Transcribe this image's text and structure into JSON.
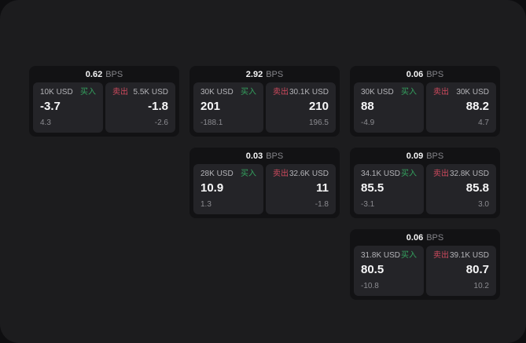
{
  "labels": {
    "bps_unit": "BPS",
    "buy": "买入",
    "sell": "卖出"
  },
  "colors": {
    "panel_bg": "#1c1c1e",
    "card_bg": "#121214",
    "tile_bg": "#242428",
    "buy_green": "#34a35f",
    "sell_red": "#cf4a5e"
  },
  "cards": [
    {
      "bps": "0.62",
      "buy": {
        "amount": "10K USD",
        "price": "-3.7",
        "delta": "4.3"
      },
      "sell": {
        "amount": "5.5K USD",
        "price": "-1.8",
        "delta": "-2.6"
      }
    },
    {
      "bps": "2.92",
      "buy": {
        "amount": "30K USD",
        "price": "201",
        "delta": "-188.1"
      },
      "sell": {
        "amount": "30.1K USD",
        "price": "210",
        "delta": "196.5"
      }
    },
    {
      "bps": "0.06",
      "buy": {
        "amount": "30K USD",
        "price": "88",
        "delta": "-4.9"
      },
      "sell": {
        "amount": "30K USD",
        "price": "88.2",
        "delta": "4.7"
      }
    },
    {
      "bps": "0.03",
      "buy": {
        "amount": "28K USD",
        "price": "10.9",
        "delta": "1.3"
      },
      "sell": {
        "amount": "32.6K USD",
        "price": "11",
        "delta": "-1.8"
      }
    },
    {
      "bps": "0.09",
      "buy": {
        "amount": "34.1K USD",
        "price": "85.5",
        "delta": "-3.1"
      },
      "sell": {
        "amount": "32.8K USD",
        "price": "85.8",
        "delta": "3.0"
      }
    },
    {
      "bps": "0.06",
      "buy": {
        "amount": "31.8K USD",
        "price": "80.5",
        "delta": "-10.8"
      },
      "sell": {
        "amount": "39.1K USD",
        "price": "80.7",
        "delta": "10.2"
      }
    }
  ]
}
